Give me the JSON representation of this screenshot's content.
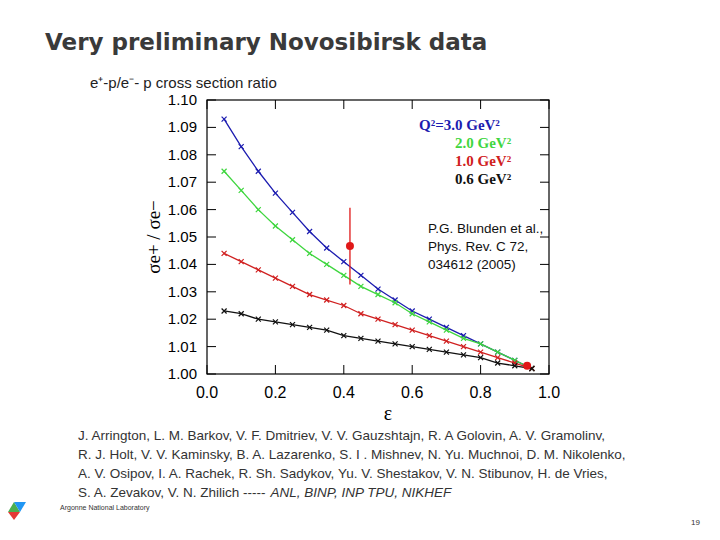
{
  "slide": {
    "title": "Very preliminary Novosibirsk data",
    "subtitle": "e⁺-p/e⁻- p cross section ratio",
    "authors": [
      "J. Arrington, L. M. Barkov, V. F. Dmitriev, V. V. Gauzshtajn, R. A Golovin, A. V. Gramolinv,",
      "R. J. Holt, V. V. Kaminsky, B. A. Lazarenko, S. I . Mishnev, N. Yu. Muchnoi, D. M. Nikolenko,",
      "A. V. Osipov, I. A. Rachek, R. Sh. Sadykov, Yu. V. Shestakov, V. N. Stibunov, H. de Vries,",
      "S. A. Zevakov, V. N. Zhilich  -----"
    ],
    "affiliations": "ANL, BINP, INP TPU, NIKHEF",
    "footer": "Argonne National Laboratory",
    "page": "19"
  },
  "chart_data": {
    "type": "line",
    "xlabel": "ε",
    "ylabel": "σe+ / σe−",
    "xlim": [
      0,
      1
    ],
    "ylim": [
      1.0,
      1.1
    ],
    "xticks": [
      {
        "value": 0,
        "label": "0.0"
      },
      {
        "value": 0.2,
        "label": "0.2"
      },
      {
        "value": 0.4,
        "label": "0.4"
      },
      {
        "value": 0.6,
        "label": "0.6"
      },
      {
        "value": 0.8,
        "label": "0.8"
      },
      {
        "value": 1,
        "label": "1.0"
      }
    ],
    "yticks": [
      {
        "value": 1.0,
        "label": "1.00"
      },
      {
        "value": 1.01,
        "label": "1.01"
      },
      {
        "value": 1.02,
        "label": "1.02"
      },
      {
        "value": 1.03,
        "label": "1.03"
      },
      {
        "value": 1.04,
        "label": "1.04"
      },
      {
        "value": 1.05,
        "label": "1.05"
      },
      {
        "value": 1.06,
        "label": "1.06"
      },
      {
        "value": 1.07,
        "label": "1.07"
      },
      {
        "value": 1.08,
        "label": "1.08"
      },
      {
        "value": 1.09,
        "label": "1.09"
      },
      {
        "value": 1.1,
        "label": "1.10"
      }
    ],
    "grid": false,
    "legend": "top-right",
    "marker": "x",
    "x": [
      0.05,
      0.1,
      0.15,
      0.2,
      0.25,
      0.3,
      0.35,
      0.4,
      0.45,
      0.5,
      0.55,
      0.6,
      0.65,
      0.7,
      0.75,
      0.8,
      0.85,
      0.9,
      0.95
    ],
    "series": [
      {
        "name": "Q²=3.0 GeV²",
        "color": "#1c1cb0",
        "values": [
          1.093,
          1.083,
          1.074,
          1.066,
          1.059,
          1.052,
          1.046,
          1.041,
          1.036,
          1.031,
          1.027,
          1.023,
          1.02,
          1.017,
          1.014,
          1.011,
          1.008,
          1.005,
          1.002
        ]
      },
      {
        "name": "2.0 GeV²",
        "color": "#3fd63f",
        "values": [
          1.074,
          1.067,
          1.06,
          1.054,
          1.049,
          1.044,
          1.04,
          1.036,
          1.032,
          1.029,
          1.026,
          1.022,
          1.019,
          1.016,
          1.013,
          1.011,
          1.008,
          1.005,
          1.002
        ]
      },
      {
        "name": "1.0 GeV²",
        "color": "#d02020",
        "values": [
          1.044,
          1.041,
          1.038,
          1.035,
          1.032,
          1.029,
          1.027,
          1.025,
          1.022,
          1.02,
          1.018,
          1.016,
          1.014,
          1.012,
          1.01,
          1.008,
          1.006,
          1.004,
          1.002
        ]
      },
      {
        "name": "0.6 GeV²",
        "color": "#111111",
        "values": [
          1.023,
          1.022,
          1.02,
          1.019,
          1.018,
          1.017,
          1.016,
          1.014,
          1.013,
          1.012,
          1.011,
          1.01,
          1.009,
          1.008,
          1.007,
          1.006,
          1.004,
          1.003,
          1.002
        ]
      }
    ],
    "data_points": {
      "type": "scatter",
      "marker": "circle",
      "color": "#e01818",
      "x": [
        0.418,
        0.936
      ],
      "values": [
        1.0467,
        1.003
      ],
      "errors": [
        0.014,
        0.001
      ]
    },
    "annotation": [
      "P.G. Blunden et al.,",
      "Phys. Rev. C 72,",
      "034612 (2005)"
    ]
  }
}
